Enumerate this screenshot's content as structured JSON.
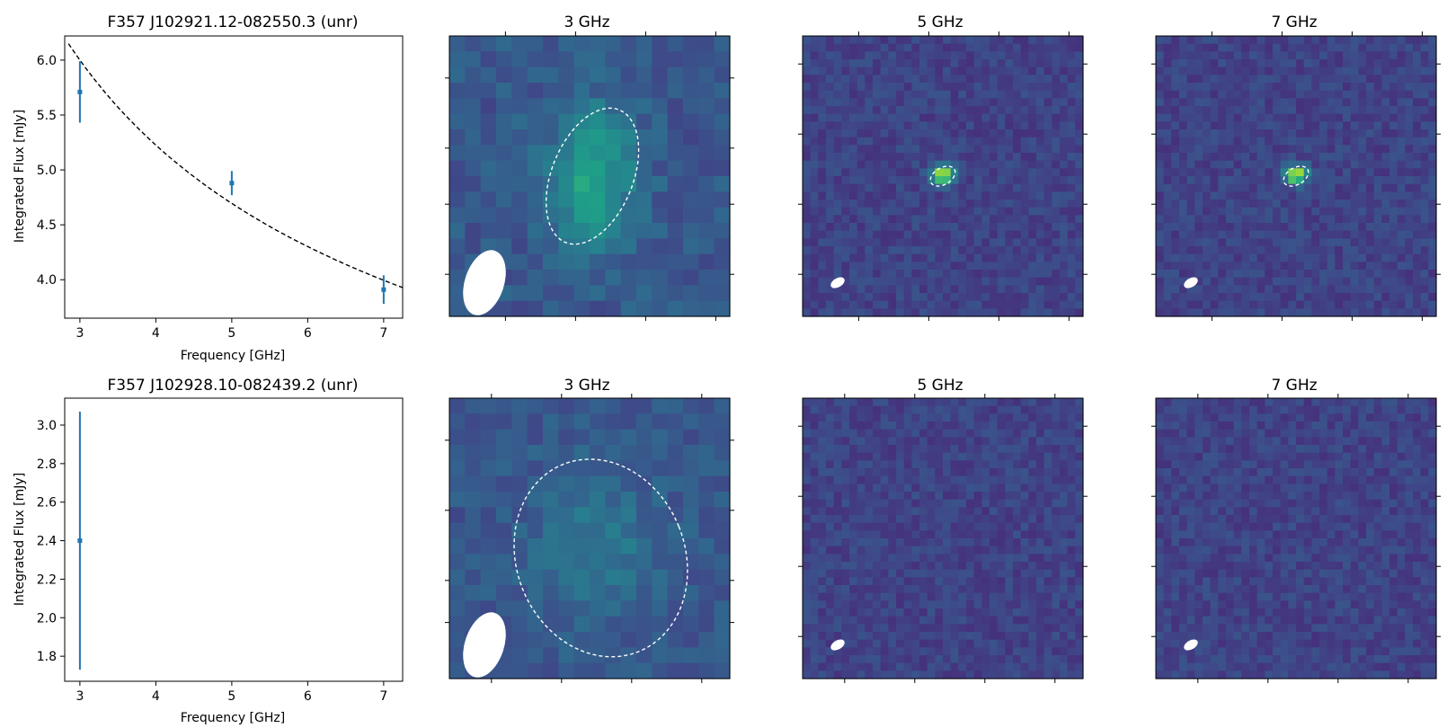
{
  "colors": {
    "errorbar": "#1f77b4",
    "fit": "#000000",
    "beam": "#ffffff",
    "contour": "#ffffff",
    "frame": "#000000"
  },
  "chart_data": [
    {
      "type": "scatter",
      "title": "F357 J102921.12-082550.3 (unr)",
      "xlabel": "Frequency [GHz]",
      "ylabel": "Integrated Flux [mJy]",
      "xlim": [
        2.8,
        7.25
      ],
      "ylim": [
        3.65,
        6.22
      ],
      "xticks": [
        3,
        4,
        5,
        6,
        7
      ],
      "yticks": [
        4.0,
        4.5,
        5.0,
        5.5,
        6.0
      ],
      "ytick_labels": [
        "4.0",
        "4.5",
        "5.0",
        "5.5",
        "6.0"
      ],
      "series": [
        {
          "x": [
            3,
            5,
            7
          ],
          "y": [
            5.71,
            4.88,
            3.91
          ],
          "yerr": [
            0.28,
            0.11,
            0.13
          ]
        }
      ],
      "fit": {
        "style": "dashed",
        "x_range": [
          2.85,
          7.25
        ],
        "S0": 6.0,
        "nu0": 3.0,
        "alpha": -0.48
      }
    },
    {
      "type": "heatmap",
      "title": "3 GHz",
      "grid": 18,
      "colormap": "viridis",
      "base": 0.27,
      "noise": 0.07,
      "blob": {
        "cx": 0.51,
        "cy": 0.5,
        "sx": 0.11,
        "sy": 0.18,
        "amp": 0.3
      },
      "contour": {
        "cx": 0.51,
        "cy": 0.5,
        "rx": 0.145,
        "ry": 0.255,
        "angle": 22
      },
      "beam": {
        "cx": 0.125,
        "cy": 0.88,
        "rx": 0.07,
        "ry": 0.12,
        "angle": 18
      },
      "xticks": [
        0.2,
        0.45,
        0.7,
        0.95
      ],
      "yticks": [
        0.15,
        0.4,
        0.6,
        0.85
      ]
    },
    {
      "type": "heatmap",
      "title": "5 GHz",
      "grid": 36,
      "colormap": "viridis",
      "base": 0.2,
      "noise": 0.06,
      "blob": {
        "cx": 0.5,
        "cy": 0.495,
        "sx": 0.028,
        "sy": 0.022,
        "amp": 0.75
      },
      "contour": {
        "cx": 0.5,
        "cy": 0.5,
        "rx": 0.048,
        "ry": 0.03,
        "angle": -30
      },
      "beam": {
        "cx": 0.125,
        "cy": 0.88,
        "rx": 0.027,
        "ry": 0.016,
        "angle": -30
      },
      "xticks": [
        0.2,
        0.45,
        0.7,
        0.95
      ],
      "yticks": [
        0.1,
        0.35,
        0.6,
        0.85
      ]
    },
    {
      "type": "heatmap",
      "title": "7 GHz",
      "grid": 36,
      "colormap": "viridis",
      "base": 0.2,
      "noise": 0.06,
      "blob": {
        "cx": 0.5,
        "cy": 0.495,
        "sx": 0.028,
        "sy": 0.022,
        "amp": 0.75
      },
      "contour": {
        "cx": 0.5,
        "cy": 0.5,
        "rx": 0.048,
        "ry": 0.03,
        "angle": -30
      },
      "beam": {
        "cx": 0.125,
        "cy": 0.88,
        "rx": 0.027,
        "ry": 0.016,
        "angle": -30
      },
      "xticks": [
        0.2,
        0.45,
        0.7,
        0.95
      ],
      "yticks": [
        0.1,
        0.35,
        0.6,
        0.85
      ]
    },
    {
      "type": "scatter",
      "title": "F357 J102928.10-082439.2 (unr)",
      "xlabel": "Frequency [GHz]",
      "ylabel": "Integrated Flux [mJy]",
      "xlim": [
        2.8,
        7.25
      ],
      "ylim": [
        1.67,
        3.14
      ],
      "xticks": [
        3,
        4,
        5,
        6,
        7
      ],
      "yticks": [
        1.8,
        2.0,
        2.2,
        2.4,
        2.6,
        2.8,
        3.0
      ],
      "ytick_labels": [
        "1.8",
        "2.0",
        "2.2",
        "2.4",
        "2.6",
        "2.8",
        "3.0"
      ],
      "series": [
        {
          "x": [
            3
          ],
          "y": [
            2.4
          ],
          "yerr": [
            0.67
          ]
        }
      ]
    },
    {
      "type": "heatmap",
      "title": "3 GHz",
      "grid": 18,
      "colormap": "viridis",
      "base": 0.27,
      "noise": 0.06,
      "blob": {
        "cx": 0.52,
        "cy": 0.52,
        "sx": 0.15,
        "sy": 0.17,
        "amp": 0.14
      },
      "contour": {
        "cx": 0.54,
        "cy": 0.57,
        "rx": 0.3,
        "ry": 0.36,
        "angle": -22
      },
      "beam": {
        "cx": 0.125,
        "cy": 0.88,
        "rx": 0.07,
        "ry": 0.12,
        "angle": 18
      },
      "xticks": [
        0.15,
        0.4,
        0.65,
        0.9
      ],
      "yticks": [
        0.15,
        0.4,
        0.65,
        0.8
      ]
    },
    {
      "type": "heatmap",
      "title": "5 GHz",
      "grid": 36,
      "colormap": "viridis",
      "base": 0.2,
      "noise": 0.06,
      "blob": null,
      "contour": null,
      "beam": {
        "cx": 0.125,
        "cy": 0.88,
        "rx": 0.027,
        "ry": 0.016,
        "angle": -30
      },
      "xticks": [
        0.15,
        0.4,
        0.65,
        0.9
      ],
      "yticks": [
        0.1,
        0.35,
        0.6,
        0.85
      ]
    },
    {
      "type": "heatmap",
      "title": "7 GHz",
      "grid": 36,
      "colormap": "viridis",
      "base": 0.2,
      "noise": 0.06,
      "blob": null,
      "contour": null,
      "beam": {
        "cx": 0.125,
        "cy": 0.88,
        "rx": 0.027,
        "ry": 0.016,
        "angle": -30
      },
      "xticks": [
        0.15,
        0.4,
        0.65,
        0.9
      ],
      "yticks": [
        0.1,
        0.35,
        0.6,
        0.85
      ]
    }
  ]
}
